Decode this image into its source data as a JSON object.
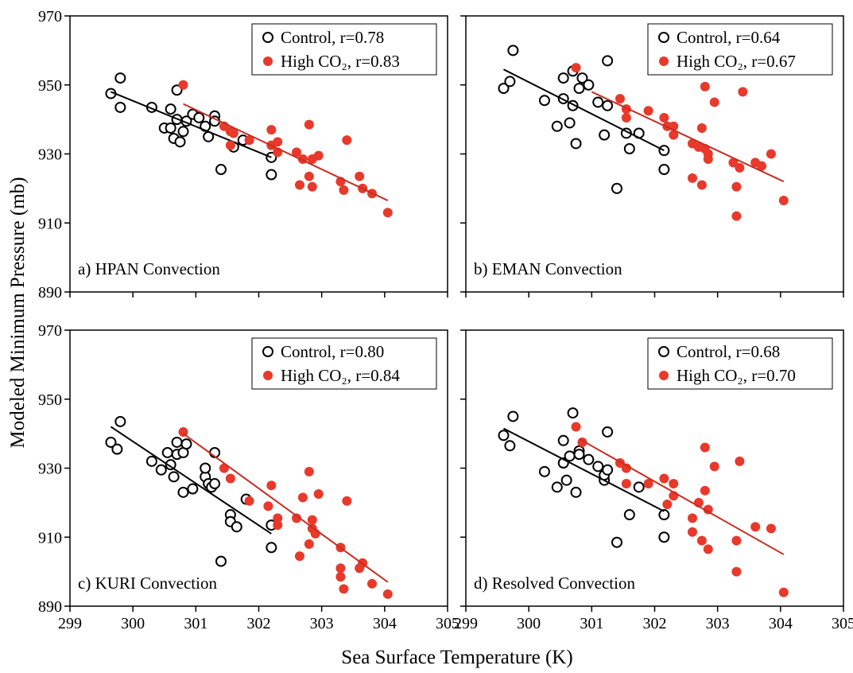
{
  "xlabel": "Sea Surface Temperature (K)",
  "ylabel": "Modeled Minimum Pressure (mb)",
  "chart_data": [
    {
      "type": "scatter",
      "label": "a) HPAN Convection",
      "xlim": [
        299,
        305
      ],
      "ylim": [
        890,
        970
      ],
      "xticks": [
        299,
        300,
        301,
        302,
        303,
        304,
        305
      ],
      "yticks": [
        890,
        910,
        930,
        950,
        970
      ],
      "xtick_labels": false,
      "ytick_labels": true,
      "series": [
        {
          "name": "Control, r=0.78",
          "color": "#000000",
          "marker": "open",
          "x": [
            299.65,
            299.8,
            299.8,
            300.3,
            300.5,
            300.6,
            300.6,
            300.65,
            300.7,
            300.7,
            300.75,
            300.8,
            300.85,
            300.95,
            301.05,
            301.15,
            301.2,
            301.3,
            301.3,
            301.6,
            301.75,
            301.4,
            302.2,
            302.2
          ],
          "y": [
            947.5,
            952,
            943.5,
            943.5,
            937.5,
            943,
            937.5,
            934.5,
            948.5,
            940,
            933.5,
            936.5,
            939.5,
            941.5,
            940.5,
            938,
            935,
            941,
            939.5,
            932,
            934,
            925.5,
            929,
            924
          ],
          "trend": {
            "x": [
              299.65,
              302.2
            ],
            "y": [
              948,
              929
            ]
          }
        },
        {
          "name": "High CO₂, r=0.83",
          "color": "#e8392b",
          "marker": "filled",
          "x": [
            300.8,
            301.45,
            301.55,
            301.55,
            301.6,
            301.85,
            302.2,
            302.2,
            302.3,
            302.3,
            302.6,
            302.65,
            302.7,
            302.8,
            302.8,
            302.85,
            302.85,
            302.95,
            303.3,
            303.35,
            303.4,
            303.6,
            303.65,
            303.8,
            304.05
          ],
          "y": [
            950,
            938,
            932.5,
            936.5,
            936,
            934,
            937,
            932.5,
            933.5,
            930.5,
            930.5,
            921,
            928.5,
            938.5,
            923.5,
            920.5,
            928.5,
            929.5,
            922,
            919.5,
            934,
            923.5,
            920,
            918.5,
            913
          ],
          "trend": {
            "x": [
              300.8,
              304.05
            ],
            "y": [
              944.5,
              916.5
            ]
          }
        }
      ]
    },
    {
      "type": "scatter",
      "label": "b) EMAN Convection",
      "xlim": [
        299,
        305
      ],
      "ylim": [
        890,
        970
      ],
      "xticks": [
        299,
        300,
        301,
        302,
        303,
        304,
        305
      ],
      "yticks": [
        890,
        910,
        930,
        950,
        970
      ],
      "xtick_labels": false,
      "ytick_labels": false,
      "series": [
        {
          "name": "Control, r=0.64",
          "color": "#000000",
          "marker": "open",
          "x": [
            299.6,
            299.7,
            299.75,
            300.25,
            300.45,
            300.55,
            300.55,
            300.65,
            300.7,
            300.7,
            300.75,
            300.8,
            300.85,
            300.95,
            301.1,
            301.2,
            301.25,
            301.25,
            301.55,
            301.6,
            301.75,
            301.4,
            302.15,
            302.15
          ],
          "y": [
            949,
            951,
            960,
            945.5,
            938,
            952,
            946,
            939,
            954,
            944,
            933,
            949,
            952,
            950,
            945,
            935.5,
            944,
            957,
            936,
            931.5,
            936,
            920,
            931,
            925.5
          ],
          "trend": {
            "x": [
              299.6,
              302.15
            ],
            "y": [
              954.5,
              931
            ]
          }
        },
        {
          "name": "High CO₂, r=0.67",
          "color": "#e8392b",
          "marker": "filled",
          "x": [
            300.75,
            301.45,
            301.55,
            301.55,
            301.9,
            302.15,
            302.2,
            302.3,
            302.3,
            302.6,
            302.6,
            302.7,
            302.75,
            302.75,
            302.8,
            302.8,
            302.85,
            302.85,
            302.95,
            303.25,
            303.3,
            303.3,
            303.35,
            303.4,
            303.6,
            303.7,
            303.85,
            304.05
          ],
          "y": [
            955,
            946,
            943,
            940.5,
            942.5,
            940.5,
            938,
            938,
            935.5,
            933,
            923,
            932,
            937.5,
            921,
            949.5,
            931.5,
            930,
            928.5,
            945,
            927.5,
            920.5,
            912,
            926,
            948,
            927.5,
            926.5,
            930,
            916.5
          ],
          "trend": {
            "x": [
              301.0,
              304.05
            ],
            "y": [
              948,
              922
            ]
          }
        }
      ]
    },
    {
      "type": "scatter",
      "label": "c) KURI Convection",
      "xlim": [
        299,
        305
      ],
      "ylim": [
        890,
        970
      ],
      "xticks": [
        299,
        300,
        301,
        302,
        303,
        304,
        305
      ],
      "yticks": [
        890,
        910,
        930,
        950,
        970
      ],
      "xtick_labels": true,
      "ytick_labels": true,
      "series": [
        {
          "name": "Control, r=0.80",
          "color": "#000000",
          "marker": "open",
          "x": [
            299.65,
            299.75,
            299.8,
            300.3,
            300.45,
            300.55,
            300.6,
            300.65,
            300.7,
            300.7,
            300.8,
            300.8,
            300.85,
            300.95,
            301.15,
            301.15,
            301.2,
            301.25,
            301.3,
            301.3,
            301.55,
            301.55,
            301.65,
            301.8,
            301.4,
            302.2,
            302.2
          ],
          "y": [
            937.5,
            935.5,
            943.5,
            932,
            929.5,
            934.5,
            931,
            927.5,
            937.5,
            934,
            923,
            934.5,
            937,
            924,
            927.5,
            930,
            925.5,
            924.5,
            934.5,
            925.5,
            916.5,
            914.5,
            913,
            921,
            903,
            913.5,
            907
          ],
          "trend": {
            "x": [
              299.65,
              302.2
            ],
            "y": [
              942,
              911
            ]
          }
        },
        {
          "name": "High CO₂, r=0.84",
          "color": "#e8392b",
          "marker": "filled",
          "x": [
            300.8,
            301.45,
            301.55,
            301.85,
            302.15,
            302.2,
            302.3,
            302.3,
            302.6,
            302.65,
            302.7,
            302.8,
            302.8,
            302.85,
            302.85,
            302.9,
            302.95,
            303.3,
            303.3,
            303.3,
            303.35,
            303.4,
            303.6,
            303.65,
            303.8,
            304.05
          ],
          "y": [
            940.5,
            930,
            927,
            920.5,
            919,
            925,
            915.5,
            913.5,
            915.5,
            904.5,
            921.5,
            929,
            908,
            915,
            912.5,
            911,
            922.5,
            907,
            898.5,
            901,
            895,
            920.5,
            901,
            902.5,
            896.5,
            893.5
          ],
          "trend": {
            "x": [
              300.8,
              304.05
            ],
            "y": [
              940,
              897
            ]
          }
        }
      ]
    },
    {
      "type": "scatter",
      "label": "d) Resolved Convection",
      "xlim": [
        299,
        305
      ],
      "ylim": [
        890,
        970
      ],
      "xticks": [
        299,
        300,
        301,
        302,
        303,
        304,
        305
      ],
      "yticks": [
        890,
        910,
        930,
        950,
        970
      ],
      "xtick_labels": true,
      "ytick_labels": false,
      "series": [
        {
          "name": "Control, r=0.68",
          "color": "#000000",
          "marker": "open",
          "x": [
            299.6,
            299.7,
            299.75,
            300.25,
            300.45,
            300.55,
            300.55,
            300.6,
            300.65,
            300.7,
            300.75,
            300.8,
            300.8,
            300.95,
            301.1,
            301.2,
            301.2,
            301.25,
            301.25,
            301.4,
            301.6,
            301.75,
            302.15,
            302.15
          ],
          "y": [
            939.5,
            936.5,
            945,
            929,
            924.5,
            931.5,
            938,
            926.5,
            933.5,
            946,
            923,
            935,
            934,
            932.5,
            930.5,
            926.5,
            928,
            929.5,
            940.5,
            908.5,
            916.5,
            924.5,
            916.5,
            910
          ],
          "trend": {
            "x": [
              299.6,
              302.15
            ],
            "y": [
              941.5,
              917.5
            ]
          }
        },
        {
          "name": "High CO₂, r=0.70",
          "color": "#e8392b",
          "marker": "filled",
          "x": [
            300.75,
            300.85,
            301.45,
            301.55,
            301.55,
            301.9,
            302.15,
            302.2,
            302.3,
            302.3,
            302.6,
            302.6,
            302.7,
            302.75,
            302.8,
            302.8,
            302.85,
            302.85,
            302.95,
            303.3,
            303.3,
            303.35,
            303.6,
            303.85,
            304.05
          ],
          "y": [
            942,
            937.5,
            931.5,
            930,
            925.5,
            925.5,
            927,
            919.5,
            925.5,
            922,
            915.5,
            911.5,
            920,
            909,
            936,
            923.5,
            918,
            906.5,
            930.5,
            909,
            900,
            932,
            913,
            912.5,
            894
          ],
          "trend": {
            "x": [
              300.8,
              304.05
            ],
            "y": [
              938.5,
              905
            ]
          }
        }
      ]
    }
  ]
}
